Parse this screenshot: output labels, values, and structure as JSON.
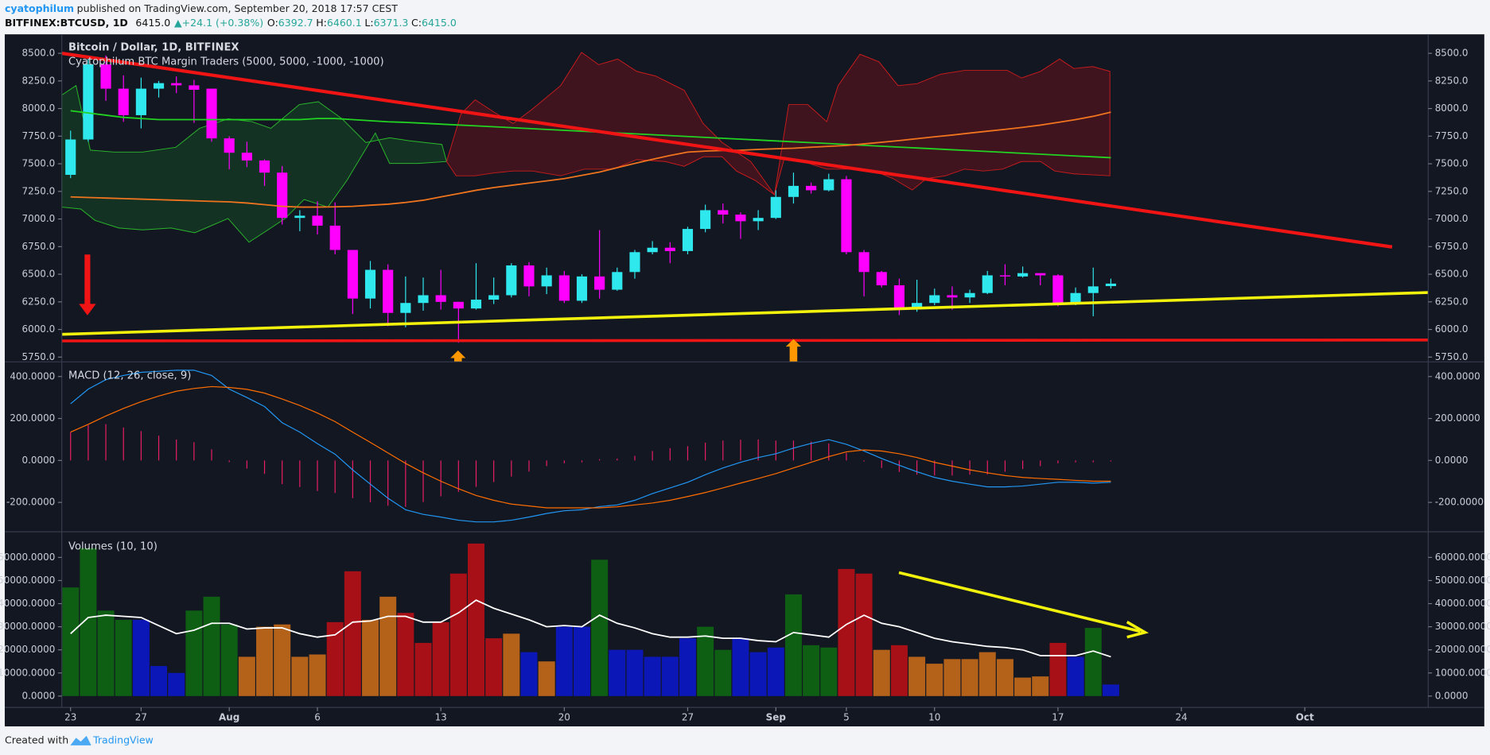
{
  "header": {
    "author": "cyatophilum",
    "published": "published on TradingView.com, September 20, 2018 17:57 CEST",
    "symbol": "BITFINEX:BTCUSD, 1D",
    "last": "6415.0",
    "arrow": "▲",
    "change": "+24.1 (+0.38%)",
    "o_label": "O:",
    "o": "6392.7",
    "h_label": "H:",
    "h": "6460.1",
    "l_label": "L:",
    "l": "6371.3",
    "c_label": "C:",
    "c": "6415.0"
  },
  "footer": {
    "created": "Created with",
    "brand": "TradingView"
  },
  "chart_data": [
    {
      "type": "candlestick",
      "title": "Bitcoin / Dollar, 1D, BITFINEX",
      "subtitle": "Cyatophilum BTC Margin Traders (5000, 5000, -1000, -1000)",
      "xlim": [
        -0.5,
        77
      ],
      "ylim": [
        5707,
        8672
      ],
      "yticks": [
        {
          "value": 8500,
          "label": "8500.0"
        },
        {
          "value": 8250,
          "label": "8250.0"
        },
        {
          "value": 8000,
          "label": "8000.0"
        },
        {
          "value": 7750,
          "label": "7750.0"
        },
        {
          "value": 7500,
          "label": "7500.0"
        },
        {
          "value": 7250,
          "label": "7250.0"
        },
        {
          "value": 7000,
          "label": "7000.0"
        },
        {
          "value": 6750,
          "label": "6750.0"
        },
        {
          "value": 6500,
          "label": "6500.0"
        },
        {
          "value": 6250,
          "label": "6250.0"
        },
        {
          "value": 6000,
          "label": "6000.0"
        },
        {
          "value": 5750,
          "label": "5750.0"
        }
      ],
      "up_color": "#2ee8ee",
      "down_color": "#ff00ff",
      "open": [
        7400,
        7720,
        8400,
        8180,
        7940,
        8180,
        8230,
        8210,
        8180,
        7730,
        7600,
        7530,
        7420,
        7010,
        7030,
        6940,
        6720,
        6280,
        6540,
        6150,
        6240,
        6310,
        6250,
        6190,
        6270,
        6310,
        6580,
        6390,
        6490,
        6260,
        6480,
        6360,
        6520,
        6700,
        6740,
        6710,
        6910,
        7080,
        7040,
        6980,
        7010,
        7200,
        7300,
        7260,
        7360,
        6700,
        6520,
        6400,
        6190,
        6240,
        6310,
        6290,
        6330,
        6490,
        6480,
        6510,
        6490,
        6240,
        6330,
        6392.7
      ],
      "high": [
        7800,
        8480,
        8480,
        8300,
        8280,
        8250,
        8290,
        8260,
        8180,
        7750,
        7700,
        7540,
        7480,
        7080,
        7160,
        7150,
        6720,
        6620,
        6590,
        6480,
        6470,
        6540,
        6250,
        6600,
        6470,
        6600,
        6610,
        6560,
        6530,
        6500,
        6900,
        6560,
        6720,
        6800,
        6790,
        6930,
        7130,
        7140,
        7060,
        7080,
        7260,
        7420,
        7330,
        7410,
        7390,
        6720,
        6530,
        6460,
        6450,
        6370,
        6390,
        6360,
        6530,
        6590,
        6570,
        6510,
        6500,
        6380,
        6560,
        6460.1
      ],
      "low": [
        7370,
        7700,
        8070,
        7880,
        7820,
        8100,
        8140,
        7870,
        7700,
        7450,
        7470,
        7300,
        6950,
        6890,
        6860,
        6680,
        6140,
        6190,
        6030,
        6020,
        6170,
        6180,
        5880,
        6180,
        6230,
        6290,
        6300,
        6320,
        6240,
        6240,
        6280,
        6350,
        6460,
        6680,
        6600,
        6680,
        6880,
        6960,
        6820,
        6900,
        7000,
        7140,
        7230,
        7250,
        6680,
        6300,
        6380,
        6130,
        6160,
        6220,
        6180,
        6240,
        6320,
        6400,
        6470,
        6400,
        6210,
        6220,
        6120,
        6371.3
      ],
      "close": [
        7720,
        8400,
        8180,
        7940,
        8180,
        8230,
        8210,
        8170,
        7730,
        7600,
        7530,
        7420,
        7010,
        7030,
        6940,
        6720,
        6280,
        6540,
        6150,
        6240,
        6310,
        6250,
        6190,
        6270,
        6310,
        6580,
        6390,
        6490,
        6260,
        6480,
        6360,
        6520,
        6700,
        6740,
        6710,
        6910,
        7080,
        7040,
        6980,
        7010,
        7200,
        7300,
        7260,
        7360,
        6700,
        6520,
        6400,
        6190,
        6240,
        6310,
        6290,
        6330,
        6490,
        6480,
        6510,
        6490,
        6240,
        6330,
        6390,
        6415
      ],
      "lines": [
        {
          "color": "#22d322",
          "values": [
            7980,
            7960,
            7940,
            7920,
            7910,
            7900,
            7900,
            7900,
            7900,
            7900,
            7900,
            7900,
            7900,
            7900,
            7910,
            7910,
            7900,
            7890,
            7880,
            7875,
            7867,
            7859,
            7851,
            7843,
            7835,
            7827,
            7819,
            7811,
            7803,
            7795,
            7787,
            7779,
            7771,
            7763,
            7755,
            7747,
            7739,
            7731,
            7723,
            7715,
            7707,
            7699,
            7691,
            7683,
            7675,
            7667,
            7659,
            7651,
            7643,
            7635,
            7627,
            7619,
            7611,
            7603,
            7595,
            7587,
            7579,
            7571,
            7563,
            7555
          ]
        },
        {
          "color": "#f0741e",
          "values": [
            7200,
            7195,
            7190,
            7185,
            7180,
            7175,
            7170,
            7165,
            7160,
            7155,
            7145,
            7130,
            7115,
            7108,
            7108,
            7110,
            7115,
            7125,
            7134,
            7150,
            7170,
            7200,
            7230,
            7260,
            7285,
            7305,
            7325,
            7345,
            7366,
            7395,
            7425,
            7465,
            7503,
            7540,
            7575,
            7606,
            7615,
            7620,
            7623,
            7630,
            7636,
            7641,
            7650,
            7658,
            7666,
            7680,
            7695,
            7710,
            7727,
            7744,
            7760,
            7778,
            7795,
            7812,
            7830,
            7850,
            7875,
            7900,
            7930,
            7967
          ]
        }
      ]
    },
    {
      "type": "macd",
      "title": "MACD (12, 26, close, 9)",
      "xlim": [
        -0.5,
        77
      ],
      "ylim": [
        -340,
        470
      ],
      "yticks": [
        {
          "value": 400,
          "label": "400.0000"
        },
        {
          "value": 200,
          "label": "200.0000"
        },
        {
          "value": 0,
          "label": "0.0000"
        },
        {
          "value": -200,
          "label": "-200.0000"
        }
      ],
      "series": [
        {
          "color": "#2196f3",
          "values": [
            270,
            340,
            385,
            405,
            420,
            425,
            430,
            430,
            405,
            340,
            300,
            257,
            180,
            135,
            80,
            30,
            -45,
            -113,
            -180,
            -235,
            -257,
            -270,
            -285,
            -293,
            -293,
            -285,
            -270,
            -253,
            -240,
            -235,
            -220,
            -212,
            -190,
            -158,
            -131,
            -104,
            -68,
            -36,
            -9,
            14,
            32,
            59,
            81,
            99,
            77,
            45,
            9,
            -23,
            -54,
            -81,
            -99,
            -113,
            -126,
            -126,
            -122,
            -113,
            -104,
            -104,
            -108,
            -104
          ]
        },
        {
          "color": "#ff6d00",
          "values": [
            135,
            172,
            212,
            248,
            280,
            307,
            330,
            343,
            352,
            348,
            339,
            321,
            293,
            262,
            226,
            185,
            135,
            86,
            36,
            -14,
            -59,
            -99,
            -135,
            -167,
            -190,
            -208,
            -217,
            -226,
            -226,
            -226,
            -226,
            -221,
            -212,
            -203,
            -190,
            -172,
            -153,
            -131,
            -108,
            -86,
            -63,
            -36,
            -9,
            18,
            41,
            50,
            45,
            32,
            14,
            -9,
            -27,
            -45,
            -59,
            -72,
            -81,
            -86,
            -90,
            -95,
            -99,
            -99
          ]
        }
      ],
      "histogram": {
        "color": "#e91e63",
        "values": [
          135,
          168,
          173,
          157,
          140,
          118,
          100,
          87,
          53,
          -8,
          -39,
          -64,
          -113,
          -127,
          -146,
          -155,
          -180,
          -199,
          -216,
          -221,
          -198,
          -171,
          -150,
          -126,
          -103,
          -77,
          -53,
          -27,
          -14,
          -9,
          6,
          9,
          22,
          45,
          59,
          68,
          85,
          95,
          99,
          100,
          95,
          95,
          90,
          81,
          36,
          -5,
          -36,
          -55,
          -68,
          -72,
          -72,
          -68,
          -67,
          -54,
          -41,
          -27,
          -14,
          -9,
          -9,
          -5
        ]
      }
    },
    {
      "type": "bar",
      "title": "Volumes (10, 10)",
      "xlim": [
        -0.5,
        77
      ],
      "ylim": [
        -4900,
        71100
      ],
      "yticks": [
        {
          "value": 60000,
          "label": "60000.0000"
        },
        {
          "value": 50000,
          "label": "50000.0000"
        },
        {
          "value": 40000,
          "label": "40000.0000"
        },
        {
          "value": 30000,
          "label": "30000.0000"
        },
        {
          "value": 20000,
          "label": "20000.0000"
        },
        {
          "value": 10000,
          "label": "10000.0000"
        },
        {
          "value": 0,
          "label": "0.0000"
        }
      ],
      "xticks": [
        {
          "value": 0,
          "label": "23"
        },
        {
          "value": 4,
          "label": "27"
        },
        {
          "value": 9,
          "label": "Aug"
        },
        {
          "value": 14,
          "label": "6"
        },
        {
          "value": 21,
          "label": "13"
        },
        {
          "value": 28,
          "label": "20"
        },
        {
          "value": 35,
          "label": "27"
        },
        {
          "value": 40,
          "label": "Sep"
        },
        {
          "value": 44,
          "label": "5"
        },
        {
          "value": 49,
          "label": "10"
        },
        {
          "value": 56,
          "label": "17"
        },
        {
          "value": 63,
          "label": "24"
        },
        {
          "value": 70,
          "label": "Oct"
        }
      ],
      "values": [
        47000,
        64000,
        37000,
        33000,
        33000,
        13000,
        10000,
        37000,
        43000,
        31000,
        17000,
        30000,
        31000,
        17000,
        18000,
        32000,
        54000,
        33000,
        43000,
        36000,
        23000,
        32000,
        53000,
        66000,
        25000,
        27000,
        19000,
        15000,
        30000,
        30000,
        59000,
        20000,
        20000,
        17000,
        17000,
        25000,
        30000,
        20000,
        25000,
        19000,
        21000,
        44000,
        22000,
        21000,
        55000,
        53000,
        20000,
        22000,
        17000,
        14000,
        16000,
        16000,
        19000,
        16000,
        8000,
        8500,
        23000,
        17000,
        29500,
        5000
      ],
      "colors": [
        "#0e5e14",
        "#0e5e14",
        "#0e5e14",
        "#0e5e14",
        "#0c17b8",
        "#0c17b8",
        "#0c17b8",
        "#0e5e14",
        "#0e5e14",
        "#0e5e14",
        "#b4621a",
        "#b4621a",
        "#b4621a",
        "#b4621a",
        "#b4621a",
        "#a81018",
        "#a81018",
        "#b4621a",
        "#b4621a",
        "#a81018",
        "#a81018",
        "#a81018",
        "#a81018",
        "#a81018",
        "#a81018",
        "#b4621a",
        "#0c17b8",
        "#b4621a",
        "#0c17b8",
        "#0c17b8",
        "#0e5e14",
        "#0c17b8",
        "#0c17b8",
        "#0c17b8",
        "#0c17b8",
        "#0c17b8",
        "#0e5e14",
        "#0e5e14",
        "#0c17b8",
        "#0c17b8",
        "#0c17b8",
        "#0e5e14",
        "#0e5e14",
        "#0e5e14",
        "#a81018",
        "#a81018",
        "#b4621a",
        "#a81018",
        "#b4621a",
        "#b4621a",
        "#b4621a",
        "#b4621a",
        "#b4621a",
        "#b4621a",
        "#b4621a",
        "#b4621a",
        "#a81018",
        "#0c17b8",
        "#0e5e14",
        "#0c17b8"
      ],
      "line": {
        "color": "#ffffff",
        "values": [
          27000,
          34000,
          35000,
          34500,
          34000,
          30500,
          27000,
          28500,
          31500,
          31500,
          29000,
          29500,
          29500,
          27000,
          25500,
          26500,
          32000,
          32500,
          34500,
          34500,
          32000,
          32000,
          36000,
          41500,
          38000,
          35500,
          33000,
          30000,
          30500,
          30000,
          35000,
          31500,
          29500,
          27000,
          25500,
          25500,
          26000,
          25000,
          25000,
          24000,
          23500,
          27500,
          26500,
          25500,
          31000,
          35000,
          31500,
          30000,
          27500,
          25000,
          23500,
          22500,
          21500,
          21000,
          20000,
          17500,
          17500,
          17500,
          19500,
          17000
        ]
      }
    }
  ]
}
